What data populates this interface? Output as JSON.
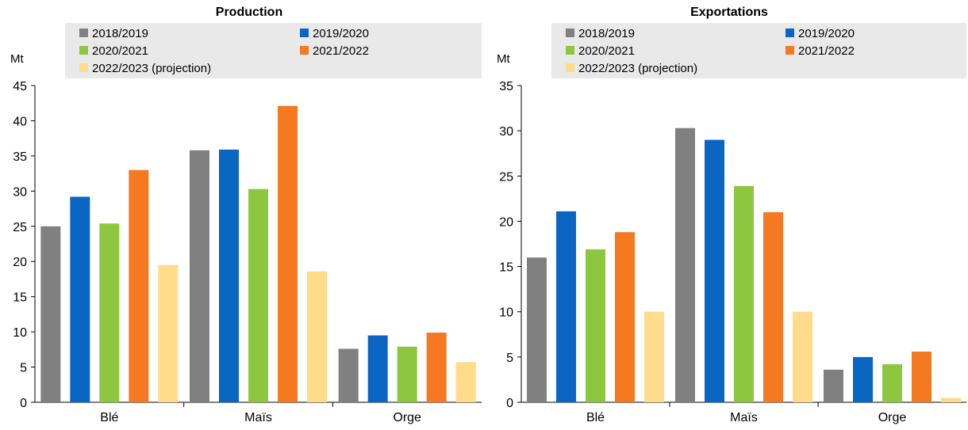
{
  "colors": {
    "series": [
      "#808080",
      "#0a66c2",
      "#8dc63f",
      "#f47920",
      "#fedc8a"
    ],
    "legend_bg": "#e9e9e9",
    "axis": "#000000"
  },
  "chart_data": [
    {
      "type": "bar",
      "title": "Production",
      "ylabel": "Mt",
      "ylim": [
        0,
        45
      ],
      "yticks": [
        0,
        5,
        10,
        15,
        20,
        25,
        30,
        35,
        40,
        45
      ],
      "grid": false,
      "legend_position": "top",
      "categories": [
        "Blé",
        "Maïs",
        "Orge"
      ],
      "series": [
        {
          "name": "2018/2019",
          "values": [
            25.0,
            35.8,
            7.6
          ]
        },
        {
          "name": "2019/2020",
          "values": [
            29.2,
            35.9,
            9.5
          ]
        },
        {
          "name": "2020/2021",
          "values": [
            25.4,
            30.3,
            7.9
          ]
        },
        {
          "name": "2021/2022",
          "values": [
            33.0,
            42.1,
            9.9
          ]
        },
        {
          "name": "2022/2023 (projection)",
          "values": [
            19.5,
            18.6,
            5.7
          ]
        }
      ]
    },
    {
      "type": "bar",
      "title": "Exportations",
      "ylabel": "Mt",
      "ylim": [
        0,
        35
      ],
      "yticks": [
        0,
        5,
        10,
        15,
        20,
        25,
        30,
        35
      ],
      "grid": false,
      "legend_position": "top",
      "categories": [
        "Blé",
        "Maïs",
        "Orge"
      ],
      "series": [
        {
          "name": "2018/2019",
          "values": [
            16.0,
            30.3,
            3.6
          ]
        },
        {
          "name": "2019/2020",
          "values": [
            21.1,
            29.0,
            5.0
          ]
        },
        {
          "name": "2020/2021",
          "values": [
            16.9,
            23.9,
            4.2
          ]
        },
        {
          "name": "2021/2022",
          "values": [
            18.8,
            21.0,
            5.6
          ]
        },
        {
          "name": "2022/2023 (projection)",
          "values": [
            10.0,
            10.0,
            0.5
          ]
        }
      ]
    }
  ]
}
